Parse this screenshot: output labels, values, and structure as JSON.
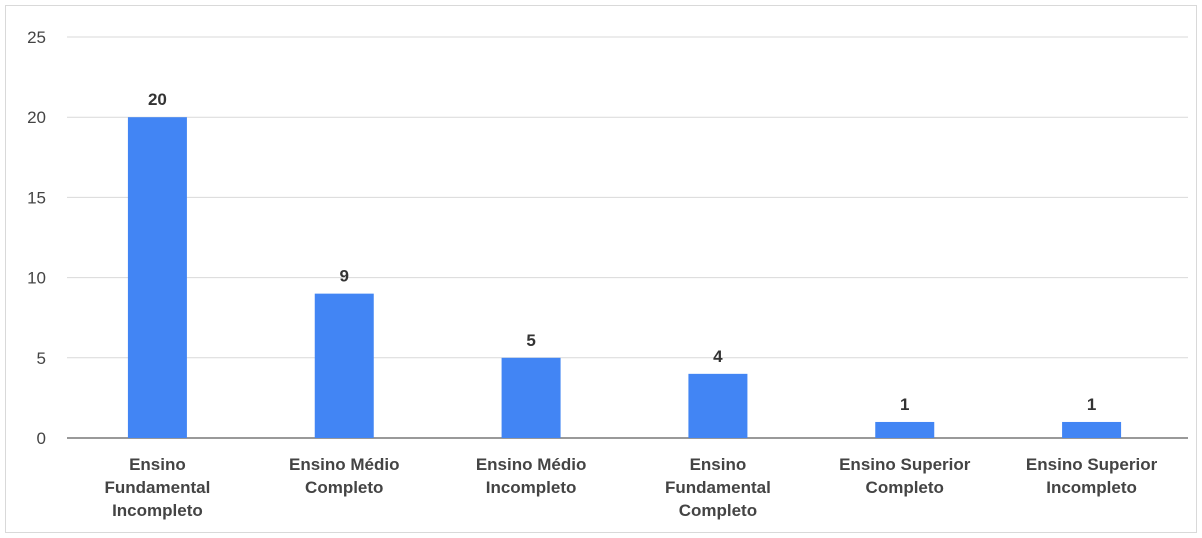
{
  "chart_data": {
    "type": "bar",
    "categories": [
      [
        "Ensino",
        "Fundamental",
        "Incompleto"
      ],
      [
        "Ensino Médio",
        "Completo"
      ],
      [
        "Ensino Médio",
        "Incompleto"
      ],
      [
        "Ensino",
        "Fundamental",
        "Completo"
      ],
      [
        "Ensino Superior",
        "Completo"
      ],
      [
        "Ensino Superior",
        "Incompleto"
      ]
    ],
    "values": [
      20,
      9,
      5,
      4,
      1,
      1
    ],
    "ylim": [
      0,
      25
    ],
    "yticks": [
      0,
      5,
      10,
      15,
      20,
      25
    ],
    "grid": true,
    "bar_color": "#4285f4",
    "gridline_color": "#d9d9d9",
    "data_labels": true
  }
}
